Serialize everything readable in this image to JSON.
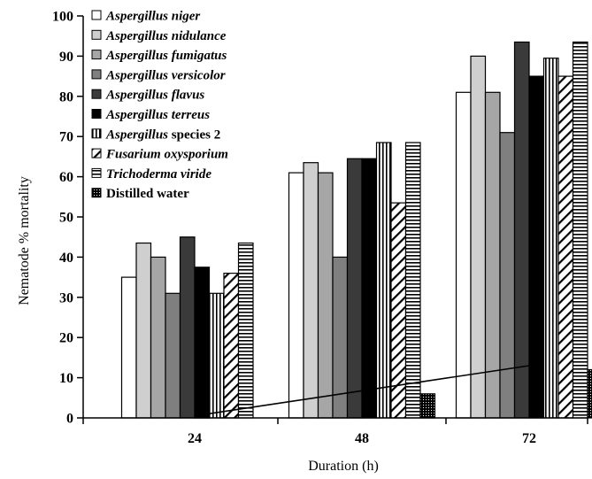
{
  "chart_data": {
    "type": "bar",
    "title": "",
    "xlabel": "Duration (h)",
    "ylabel": "Nematode % mortality",
    "categories": [
      "24",
      "48",
      "72"
    ],
    "ylim": [
      0,
      100
    ],
    "yticks": [
      0,
      10,
      20,
      30,
      40,
      50,
      60,
      70,
      80,
      90,
      100
    ],
    "legend_placement": "top-left inside plot",
    "grid": false,
    "series": [
      {
        "name": "Aspergillus niger",
        "italic": "Aspergillus niger",
        "plain": "",
        "values": [
          35,
          61,
          81
        ],
        "fill": "#ffffff",
        "pattern": "solid"
      },
      {
        "name": "Aspergillus nidulance",
        "italic": "Aspergillus nidulance",
        "plain": "",
        "values": [
          43.5,
          63.5,
          90
        ],
        "fill": "#cfcfcf",
        "pattern": "solid"
      },
      {
        "name": "Aspergillus fumigatus",
        "italic": "Aspergillus fumigatus",
        "plain": "",
        "values": [
          40,
          61,
          81
        ],
        "fill": "#a6a6a6",
        "pattern": "solid"
      },
      {
        "name": "Aspergillus versicolor",
        "italic": "Aspergillus versicolor",
        "plain": "",
        "values": [
          31,
          40,
          71
        ],
        "fill": "#7f7f7f",
        "pattern": "solid"
      },
      {
        "name": "Aspergillus flavus",
        "italic": "Aspergillus flavus",
        "plain": "",
        "values": [
          45,
          64.5,
          93.5
        ],
        "fill": "#3a3a3a",
        "pattern": "solid"
      },
      {
        "name": "Aspergillus terreus",
        "italic": "Aspergillus terreus",
        "plain": "",
        "values": [
          37.5,
          64.5,
          85
        ],
        "fill": "#000000",
        "pattern": "solid"
      },
      {
        "name": "Aspergillus species 2",
        "italic": "Aspergillus",
        "plain": " species 2",
        "values": [
          31,
          68.5,
          89.5
        ],
        "fill": "#000000",
        "pattern": "vertical"
      },
      {
        "name": "Fusarium oxysporium",
        "italic": "Fusarium oxysporium",
        "plain": "",
        "values": [
          36,
          53.5,
          85
        ],
        "fill": "#000000",
        "pattern": "diagonal"
      },
      {
        "name": "Trichoderma viride",
        "italic": "Trichoderma viride",
        "plain": "",
        "values": [
          43.5,
          68.5,
          93.5
        ],
        "fill": "#000000",
        "pattern": "horizontal"
      },
      {
        "name": "Distilled water",
        "italic": "",
        "plain": "Distilled water",
        "values": [
          0,
          6,
          12
        ],
        "fill": "#000000",
        "pattern": "dots"
      }
    ],
    "trendline": {
      "x": [
        "24",
        "72"
      ],
      "y": [
        0.5,
        13
      ]
    }
  }
}
